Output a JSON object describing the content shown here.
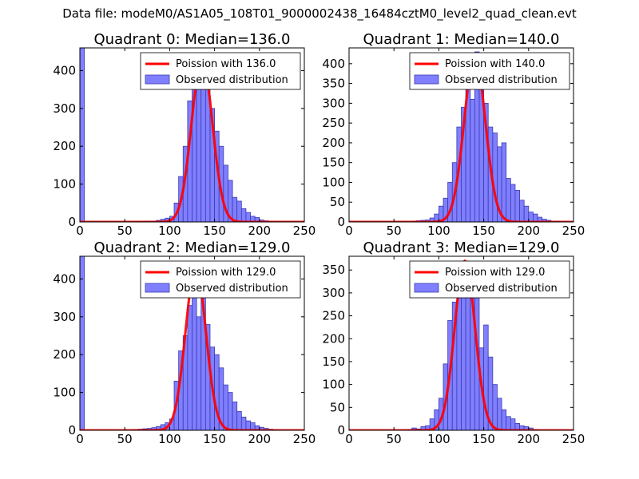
{
  "figure_title": "Data file: modeM0/AS1A05_108T01_9000002438_16484cztM0_level2_quad_clean.evt",
  "colors": {
    "hist_fill": "#7f7fff",
    "hist_edge": "#3b3bb0",
    "poisson": "#ff0000"
  },
  "chart_data": [
    {
      "type": "bar",
      "title": "Quadrant 0: Median=136.0",
      "xlim": [
        0,
        250
      ],
      "ylim": [
        0,
        460
      ],
      "xticks": [
        0,
        50,
        100,
        150,
        200,
        250
      ],
      "yticks": [
        0,
        100,
        200,
        300,
        400
      ],
      "legend": [
        "Poission with 136.0",
        "Observed distribution"
      ],
      "legend_loc": "top-right",
      "bin_width": 5,
      "spike": {
        "x": 0,
        "width": 5,
        "value": 460
      },
      "bins_x": [
        65,
        70,
        75,
        80,
        85,
        90,
        95,
        100,
        105,
        110,
        115,
        120,
        125,
        130,
        135,
        140,
        145,
        150,
        155,
        160,
        165,
        170,
        175,
        180,
        185,
        190,
        195,
        200,
        205,
        210
      ],
      "counts": [
        1,
        1,
        2,
        2,
        4,
        7,
        10,
        15,
        50,
        120,
        200,
        320,
        360,
        390,
        420,
        400,
        300,
        240,
        200,
        150,
        110,
        65,
        55,
        35,
        25,
        15,
        12,
        5,
        3,
        1
      ],
      "poisson_mean": 136.0,
      "poisson_peak": 430
    },
    {
      "type": "bar",
      "title": "Quadrant 1: Median=140.0",
      "xlim": [
        0,
        250
      ],
      "ylim": [
        0,
        440
      ],
      "xticks": [
        0,
        50,
        100,
        150,
        200,
        250
      ],
      "yticks": [
        0,
        50,
        100,
        150,
        200,
        250,
        300,
        350,
        400
      ],
      "legend": [
        "Poission with 140.0",
        "Observed distribution"
      ],
      "legend_loc": "top-right",
      "bin_width": 5,
      "spike": null,
      "bins_x": [
        70,
        75,
        80,
        85,
        90,
        95,
        100,
        105,
        110,
        115,
        120,
        125,
        130,
        135,
        140,
        145,
        150,
        155,
        160,
        165,
        170,
        175,
        180,
        185,
        190,
        195,
        200,
        205,
        210,
        215,
        220,
        225,
        230
      ],
      "counts": [
        2,
        3,
        4,
        5,
        10,
        20,
        40,
        60,
        100,
        150,
        240,
        290,
        400,
        310,
        430,
        360,
        300,
        240,
        225,
        190,
        200,
        110,
        95,
        80,
        55,
        40,
        25,
        20,
        12,
        7,
        4,
        2,
        1
      ],
      "poisson_mean": 140.0,
      "poisson_peak": 420
    },
    {
      "type": "bar",
      "title": "Quadrant 2: Median=129.0",
      "xlim": [
        0,
        250
      ],
      "ylim": [
        0,
        460
      ],
      "xticks": [
        0,
        50,
        100,
        150,
        200,
        250
      ],
      "yticks": [
        0,
        100,
        200,
        300,
        400
      ],
      "legend": [
        "Poission with 129.0",
        "Observed distribution"
      ],
      "legend_loc": "top-right",
      "bin_width": 5,
      "spike": {
        "x": 0,
        "width": 5,
        "value": 460
      },
      "bins_x": [
        60,
        65,
        70,
        75,
        80,
        85,
        90,
        95,
        100,
        105,
        110,
        115,
        120,
        125,
        130,
        135,
        140,
        145,
        150,
        155,
        160,
        165,
        170,
        175,
        180,
        185,
        190,
        195,
        200,
        205,
        210,
        215,
        220
      ],
      "counts": [
        2,
        3,
        4,
        5,
        7,
        10,
        15,
        20,
        30,
        130,
        210,
        250,
        330,
        420,
        300,
        360,
        280,
        220,
        200,
        165,
        120,
        100,
        75,
        50,
        35,
        25,
        20,
        12,
        8,
        5,
        3,
        2,
        1
      ],
      "poisson_mean": 129.0,
      "poisson_peak": 430
    },
    {
      "type": "bar",
      "title": "Quadrant 3: Median=129.0",
      "xlim": [
        0,
        250
      ],
      "ylim": [
        0,
        380
      ],
      "xticks": [
        0,
        50,
        100,
        150,
        200,
        250
      ],
      "yticks": [
        0,
        50,
        100,
        150,
        200,
        250,
        300,
        350
      ],
      "legend": [
        "Poission with 129.0",
        "Observed distribution"
      ],
      "legend_loc": "top-right",
      "bin_width": 5,
      "spike": null,
      "bins_x": [
        65,
        70,
        75,
        80,
        85,
        90,
        95,
        100,
        105,
        110,
        115,
        120,
        125,
        130,
        135,
        140,
        145,
        150,
        155,
        160,
        165,
        170,
        175,
        180,
        185,
        190,
        195,
        200,
        205
      ],
      "counts": [
        2,
        5,
        3,
        8,
        10,
        25,
        45,
        70,
        145,
        240,
        280,
        340,
        360,
        310,
        340,
        290,
        180,
        230,
        160,
        100,
        70,
        45,
        30,
        25,
        15,
        10,
        8,
        5,
        2
      ],
      "poisson_mean": 129.0,
      "poisson_peak": 370
    }
  ]
}
